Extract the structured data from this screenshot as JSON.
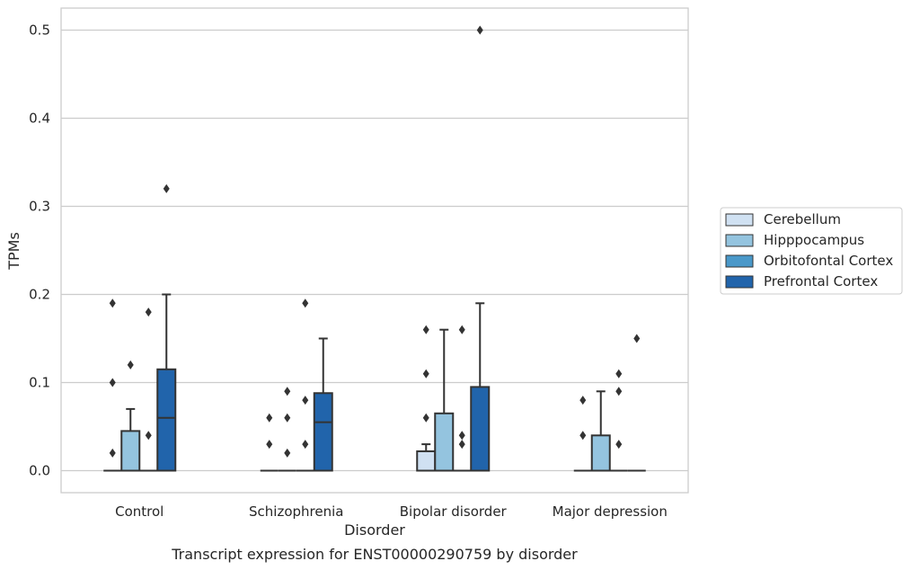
{
  "caption": "Transcript expression for ENST00000290759 by disorder",
  "chart_data": {
    "type": "box",
    "title": "",
    "xlabel": "Disorder",
    "ylabel": "TPMs",
    "ylim": [
      -0.025,
      0.525
    ],
    "yticks": [
      0.0,
      0.1,
      0.2,
      0.3,
      0.4,
      0.5
    ],
    "ytick_labels": [
      "0.0",
      "0.1",
      "0.2",
      "0.3",
      "0.4",
      "0.5"
    ],
    "grid": "horizontal",
    "legend_position": "right",
    "categories": [
      "Control",
      "Schizophrenia",
      "Bipolar disorder",
      "Major depression"
    ],
    "series": [
      {
        "name": "Cerebellum",
        "color": "#d0e1f2",
        "boxes": [
          {
            "q1": 0,
            "median": 0,
            "q3": 0,
            "whislo": 0,
            "whishi": 0,
            "fliers": [
              0.02,
              0.1,
              0.19
            ]
          },
          {
            "q1": 0,
            "median": 0,
            "q3": 0,
            "whislo": 0,
            "whishi": 0,
            "fliers": [
              0.03,
              0.06
            ]
          },
          {
            "q1": 0,
            "median": 0,
            "q3": 0.022,
            "whislo": 0,
            "whishi": 0.03,
            "fliers": [
              0.06,
              0.11,
              0.16
            ]
          },
          {
            "q1": 0,
            "median": 0,
            "q3": 0,
            "whislo": 0,
            "whishi": 0,
            "fliers": [
              0.04,
              0.08
            ]
          }
        ]
      },
      {
        "name": "Hipppocampus",
        "color": "#94c4df",
        "boxes": [
          {
            "q1": 0,
            "median": 0,
            "q3": 0.045,
            "whislo": 0,
            "whishi": 0.07,
            "fliers": [
              0.12
            ]
          },
          {
            "q1": 0,
            "median": 0,
            "q3": 0,
            "whislo": 0,
            "whishi": 0,
            "fliers": [
              0.02,
              0.06,
              0.09
            ]
          },
          {
            "q1": 0,
            "median": 0,
            "q3": 0.065,
            "whislo": 0,
            "whishi": 0.16,
            "fliers": []
          },
          {
            "q1": 0,
            "median": 0,
            "q3": 0.04,
            "whislo": 0,
            "whishi": 0.09,
            "fliers": []
          }
        ]
      },
      {
        "name": "Orbitofontal Cortex",
        "color": "#4a98c9",
        "boxes": [
          {
            "q1": 0,
            "median": 0,
            "q3": 0,
            "whislo": 0,
            "whishi": 0,
            "fliers": [
              0.04,
              0.18
            ]
          },
          {
            "q1": 0,
            "median": 0,
            "q3": 0,
            "whislo": 0,
            "whishi": 0,
            "fliers": [
              0.03,
              0.08,
              0.19
            ]
          },
          {
            "q1": 0,
            "median": 0,
            "q3": 0,
            "whislo": 0,
            "whishi": 0,
            "fliers": [
              0.03,
              0.04,
              0.16
            ]
          },
          {
            "q1": 0,
            "median": 0,
            "q3": 0,
            "whislo": 0,
            "whishi": 0,
            "fliers": [
              0.03,
              0.09,
              0.11
            ]
          }
        ]
      },
      {
        "name": "Prefrontal Cortex",
        "color": "#2164ab",
        "boxes": [
          {
            "q1": 0,
            "median": 0.06,
            "q3": 0.115,
            "whislo": 0,
            "whishi": 0.2,
            "fliers": [
              0.32
            ]
          },
          {
            "q1": 0,
            "median": 0.055,
            "q3": 0.088,
            "whislo": 0,
            "whishi": 0.15,
            "fliers": []
          },
          {
            "q1": 0,
            "median": 0,
            "q3": 0.095,
            "whislo": 0,
            "whishi": 0.19,
            "fliers": [
              0.5
            ]
          },
          {
            "q1": 0,
            "median": 0,
            "q3": 0,
            "whislo": 0,
            "whishi": 0,
            "fliers": [
              0.15
            ]
          }
        ]
      }
    ]
  }
}
